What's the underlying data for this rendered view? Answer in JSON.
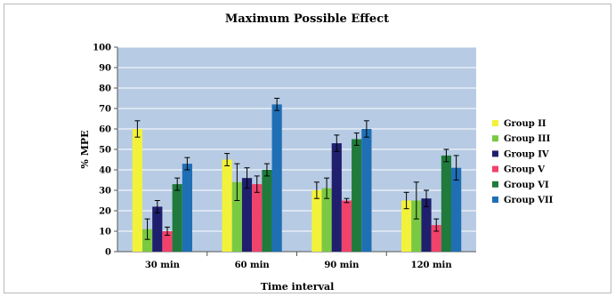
{
  "chart_data": {
    "type": "bar",
    "title": "Maximum Possible Effect",
    "xlabel": "Time interval",
    "ylabel": "% MPE",
    "ylim": [
      0,
      100
    ],
    "yticks": [
      0,
      10,
      20,
      30,
      40,
      50,
      60,
      70,
      80,
      90,
      100
    ],
    "grid": true,
    "legend_position": "right",
    "plot_background": "#b7cbe4",
    "categories": [
      "30 min",
      "60 min",
      "90 min",
      "120 min"
    ],
    "series": [
      {
        "name": "Group II",
        "color": "#f2f23a",
        "values": [
          60,
          45,
          30,
          25
        ],
        "errors": [
          4,
          3,
          4,
          4
        ]
      },
      {
        "name": "Group III",
        "color": "#7ac943",
        "values": [
          11,
          34,
          31,
          25
        ],
        "errors": [
          5,
          9,
          5,
          9
        ]
      },
      {
        "name": "Group IV",
        "color": "#1f1f6e",
        "values": [
          22,
          36,
          53,
          26
        ],
        "errors": [
          3,
          5,
          4,
          4
        ]
      },
      {
        "name": "Group V",
        "color": "#f0426b",
        "values": [
          10,
          33,
          25,
          13
        ],
        "errors": [
          2,
          4,
          1,
          3
        ]
      },
      {
        "name": "Group VI",
        "color": "#1f7a3c",
        "values": [
          33,
          40,
          55,
          47
        ],
        "errors": [
          3,
          3,
          3,
          3
        ]
      },
      {
        "name": "Group VII",
        "color": "#1f6fb5",
        "values": [
          43,
          72,
          60,
          41
        ],
        "errors": [
          3,
          3,
          4,
          6
        ]
      }
    ]
  }
}
